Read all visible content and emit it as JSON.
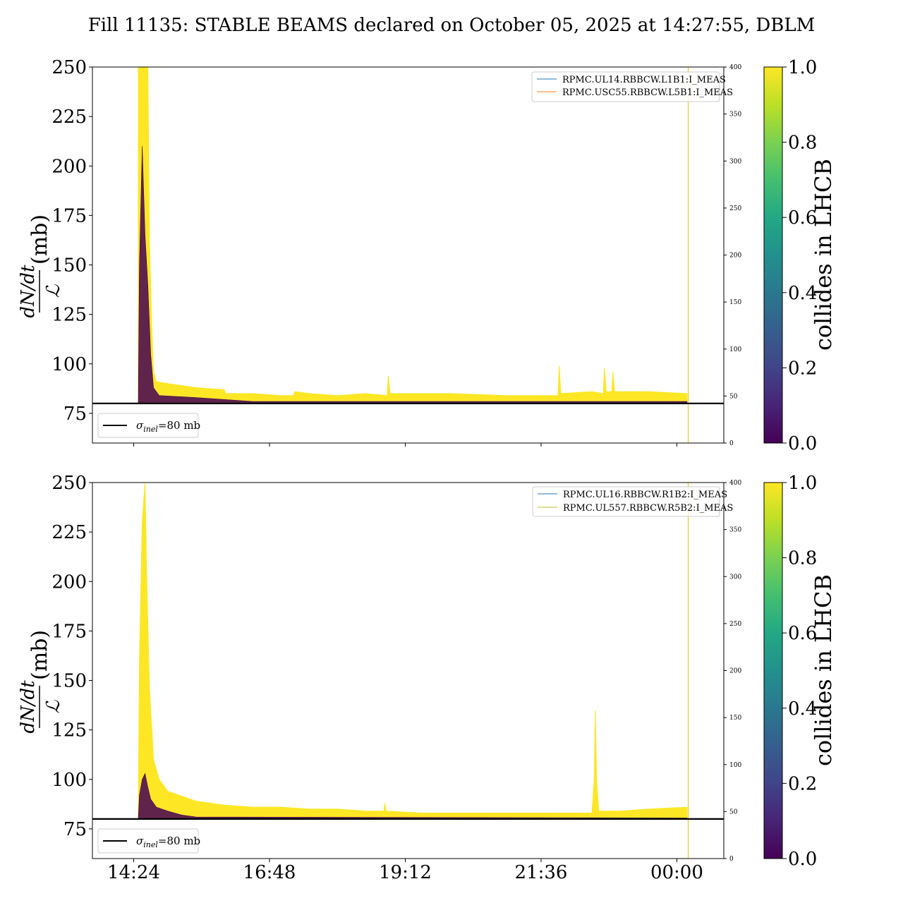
{
  "figure": {
    "title": "Fill 11135: STABLE BEAMS declared on October 05, 2025 at 14:27:55, DBLM"
  },
  "chart_data": [
    {
      "type": "scatter",
      "panel": "top",
      "ylabel_numerator": "dN/dt",
      "ylabel_denominator": "ℒ",
      "ylabel_unit": "(mb)",
      "ylim": [
        60,
        250
      ],
      "yticks": [
        75,
        100,
        125,
        150,
        175,
        200,
        225,
        250
      ],
      "y2lim": [
        0,
        400
      ],
      "y2ticks": [
        0,
        50,
        100,
        150,
        200,
        250,
        300,
        350,
        400
      ],
      "xlim_hours": [
        13.67,
        24.83
      ],
      "xticks": [
        {
          "label": "14:24",
          "hours": 14.4
        },
        {
          "label": "16:48",
          "hours": 16.8
        },
        {
          "label": "19:12",
          "hours": 19.2
        },
        {
          "label": "21:36",
          "hours": 21.6
        },
        {
          "label": "00:00",
          "hours": 24.0
        }
      ],
      "show_xtick_labels": false,
      "reference_line": {
        "label": "σinel=80 mb",
        "sym": "σ",
        "sub": "inel",
        "rest": "=80 mb",
        "value": 80,
        "color": "#000000"
      },
      "legend": {
        "placement": "upper right",
        "entries": [
          {
            "name": "RPMC.UL14.RBBCW.L1B1:I_MEAS",
            "color": "#1f77b4"
          },
          {
            "name": "RPMC.USC55.RBBCW.L5B1:I_MEAS",
            "color": "#ff7f0e"
          }
        ]
      },
      "vline_hours": 24.2,
      "colorbar": {
        "label": "collides in LHCB",
        "range": [
          0.0,
          1.0
        ],
        "ticks": [
          "0.0",
          "0.2",
          "0.4",
          "0.6",
          "0.8",
          "1.0"
        ]
      },
      "envelope_yellow_upper": [
        [
          14.48,
          250
        ],
        [
          14.52,
          250
        ],
        [
          14.6,
          250
        ],
        [
          14.65,
          250
        ],
        [
          14.68,
          160
        ],
        [
          14.72,
          118
        ],
        [
          14.75,
          96
        ],
        [
          14.8,
          91
        ],
        [
          15.0,
          90
        ],
        [
          15.5,
          88
        ],
        [
          16.0,
          87
        ],
        [
          16.02,
          85
        ],
        [
          16.5,
          85
        ],
        [
          17.0,
          84
        ],
        [
          17.22,
          84
        ],
        [
          17.25,
          86
        ],
        [
          17.5,
          85
        ],
        [
          18.0,
          84
        ],
        [
          18.5,
          85
        ],
        [
          18.88,
          84
        ],
        [
          18.9,
          94
        ],
        [
          18.93,
          85
        ],
        [
          19.5,
          85
        ],
        [
          20.0,
          85
        ],
        [
          21.0,
          84
        ],
        [
          21.9,
          84
        ],
        [
          21.92,
          99
        ],
        [
          21.95,
          85
        ],
        [
          22.5,
          86
        ],
        [
          22.7,
          85
        ],
        [
          22.72,
          98
        ],
        [
          22.75,
          86
        ],
        [
          22.85,
          86
        ],
        [
          22.87,
          96
        ],
        [
          22.9,
          86
        ],
        [
          23.5,
          86
        ],
        [
          24.18,
          85
        ]
      ],
      "envelope_purple_upper": [
        [
          14.48,
          80
        ],
        [
          14.5,
          150
        ],
        [
          14.55,
          210
        ],
        [
          14.6,
          165
        ],
        [
          14.65,
          140
        ],
        [
          14.7,
          105
        ],
        [
          14.75,
          88
        ],
        [
          14.85,
          84
        ],
        [
          15.5,
          83
        ],
        [
          16.0,
          82
        ],
        [
          16.5,
          81
        ],
        [
          17.5,
          81
        ],
        [
          18.5,
          81
        ],
        [
          19.5,
          81
        ],
        [
          20.5,
          81
        ],
        [
          21.5,
          81
        ],
        [
          22.5,
          81
        ],
        [
          24.18,
          81
        ]
      ]
    },
    {
      "type": "scatter",
      "panel": "bottom",
      "ylabel_numerator": "dN/dt",
      "ylabel_denominator": "ℒ",
      "ylabel_unit": "(mb)",
      "ylim": [
        60,
        250
      ],
      "yticks": [
        75,
        100,
        125,
        150,
        175,
        200,
        225,
        250
      ],
      "y2lim": [
        0,
        400
      ],
      "y2ticks": [
        0,
        50,
        100,
        150,
        200,
        250,
        300,
        350,
        400
      ],
      "xlim_hours": [
        13.67,
        24.83
      ],
      "xticks": [
        {
          "label": "14:24",
          "hours": 14.4
        },
        {
          "label": "16:48",
          "hours": 16.8
        },
        {
          "label": "19:12",
          "hours": 19.2
        },
        {
          "label": "21:36",
          "hours": 21.6
        },
        {
          "label": "00:00",
          "hours": 24.0
        }
      ],
      "show_xtick_labels": true,
      "reference_line": {
        "label": "σinel=80 mb",
        "sym": "σ",
        "sub": "inel",
        "rest": "=80 mb",
        "value": 80,
        "color": "#000000"
      },
      "legend": {
        "placement": "upper right",
        "entries": [
          {
            "name": "RPMC.UL16.RBBCW.R1B2:I_MEAS",
            "color": "#1f77b4"
          },
          {
            "name": "RPMC.UL557.RBBCW.R5B2:I_MEAS",
            "color": "#bcbd22"
          }
        ]
      },
      "vline_hours": 24.2,
      "colorbar": {
        "label": "collides in LHCB",
        "range": [
          0.0,
          1.0
        ],
        "ticks": [
          "0.0",
          "0.2",
          "0.4",
          "0.6",
          "0.8",
          "1.0"
        ]
      },
      "envelope_yellow_upper": [
        [
          14.48,
          85
        ],
        [
          14.5,
          160
        ],
        [
          14.55,
          230
        ],
        [
          14.6,
          250
        ],
        [
          14.63,
          200
        ],
        [
          14.68,
          145
        ],
        [
          14.75,
          110
        ],
        [
          14.85,
          100
        ],
        [
          15.0,
          94
        ],
        [
          15.2,
          92
        ],
        [
          15.5,
          89
        ],
        [
          16.0,
          87
        ],
        [
          16.5,
          86
        ],
        [
          17.0,
          86
        ],
        [
          17.5,
          85
        ],
        [
          18.0,
          85
        ],
        [
          18.5,
          84
        ],
        [
          18.82,
          84
        ],
        [
          18.84,
          88
        ],
        [
          18.86,
          84
        ],
        [
          19.5,
          83
        ],
        [
          20.0,
          83
        ],
        [
          21.0,
          83
        ],
        [
          22.0,
          83
        ],
        [
          22.5,
          83
        ],
        [
          22.54,
          100
        ],
        [
          22.56,
          135
        ],
        [
          22.58,
          100
        ],
        [
          22.62,
          84
        ],
        [
          23.0,
          84
        ],
        [
          23.5,
          85
        ],
        [
          24.18,
          86
        ]
      ],
      "envelope_purple_upper": [
        [
          14.48,
          80
        ],
        [
          14.5,
          92
        ],
        [
          14.55,
          100
        ],
        [
          14.6,
          103
        ],
        [
          14.65,
          96
        ],
        [
          14.7,
          90
        ],
        [
          14.8,
          86
        ],
        [
          15.0,
          84
        ],
        [
          15.25,
          82
        ],
        [
          15.5,
          81
        ],
        [
          24.18,
          80.5
        ]
      ]
    }
  ]
}
